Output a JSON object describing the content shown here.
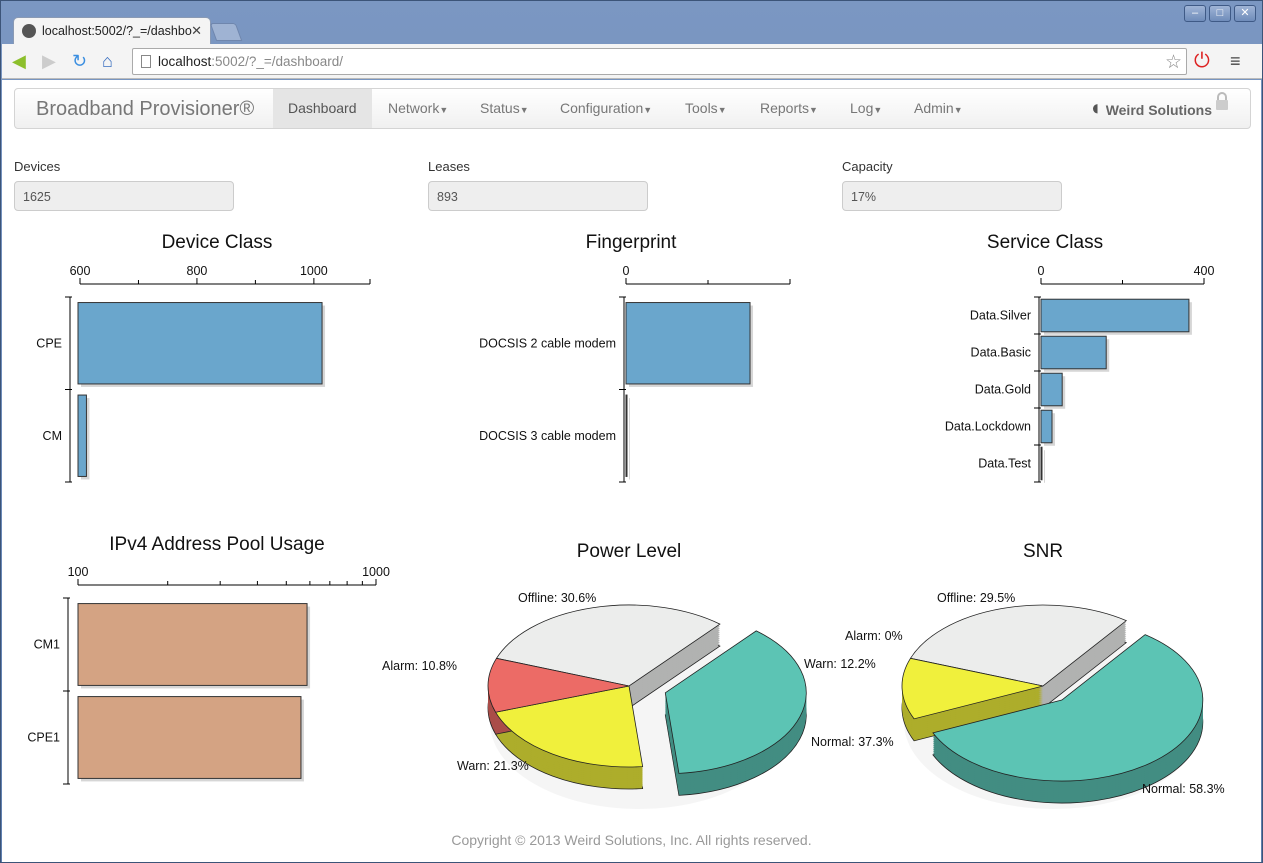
{
  "browser": {
    "tab_title": "localhost:5002/?_=/dashbo",
    "url_host": "localhost",
    "url_rest": ":5002/?_=/dashboard/"
  },
  "navbar": {
    "brand": "Broadband Provisioner®",
    "items": [
      "Dashboard",
      "Network",
      "Status",
      "Configuration",
      "Tools",
      "Reports",
      "Log",
      "Admin"
    ],
    "logo": "Weird Solutions"
  },
  "stats": [
    {
      "label": "Devices",
      "value": "1625"
    },
    {
      "label": "Leases",
      "value": "893"
    },
    {
      "label": "Capacity",
      "value": "17%"
    }
  ],
  "chart_data": [
    {
      "type": "bar",
      "orientation": "horizontal",
      "title": "Device Class",
      "categories": [
        "CPE",
        "CM"
      ],
      "values": [
        1014,
        611
      ],
      "xlim": [
        600,
        1096
      ],
      "ticks": [
        600,
        800,
        1000
      ],
      "minor_ticks": [
        700,
        900
      ],
      "color": "#6aa6cc"
    },
    {
      "type": "bar",
      "orientation": "horizontal",
      "title": "Fingerprint",
      "categories": [
        "DOCSIS 2 cable modem",
        "DOCSIS 3 cable modem"
      ],
      "values": [
        605,
        3
      ],
      "xlim": [
        0,
        800
      ],
      "ticks": [
        0
      ],
      "minor_ticks": [
        400
      ],
      "color": "#6aa6cc"
    },
    {
      "type": "bar",
      "orientation": "horizontal",
      "title": "Service Class",
      "categories": [
        "Data.Silver",
        "Data.Basic",
        "Data.Gold",
        "Data.Lockdown",
        "Data.Test"
      ],
      "values": [
        363,
        160,
        52,
        27,
        2
      ],
      "xlim": [
        0,
        400
      ],
      "ticks": [
        0,
        400
      ],
      "minor_ticks": [
        200
      ],
      "color": "#6aa6cc"
    },
    {
      "type": "bar",
      "orientation": "horizontal",
      "scale": "log",
      "title": "IPv4 Address Pool Usage",
      "categories": [
        "CM1",
        "CPE1"
      ],
      "values": [
        587,
        560
      ],
      "xlim": [
        100,
        1000
      ],
      "ticks": [
        100,
        1000
      ],
      "color": "#d4a383"
    },
    {
      "type": "pie",
      "title": "Power Level",
      "slices": [
        {
          "name": "Offline",
          "value": 30.6,
          "label": "Offline: 30.6%",
          "color": "#ecedec"
        },
        {
          "name": "Normal",
          "value": 37.3,
          "label": "Normal: 37.3%",
          "color": "#5cc4b4",
          "exploded": true
        },
        {
          "name": "Warn",
          "value": 21.3,
          "label": "Warn: 21.3%",
          "color": "#f0f03c"
        },
        {
          "name": "Alarm",
          "value": 10.8,
          "label": "Alarm: 10.8%",
          "color": "#ec6b66"
        }
      ]
    },
    {
      "type": "pie",
      "title": "SNR",
      "slices": [
        {
          "name": "Offline",
          "value": 29.5,
          "label": "Offline: 29.5%",
          "color": "#ecedec"
        },
        {
          "name": "Normal",
          "value": 58.3,
          "label": "Normal: 58.3%",
          "color": "#5cc4b4",
          "exploded": true
        },
        {
          "name": "Alarm",
          "value": 0,
          "label": "Alarm: 0%",
          "color": "#ec6b66"
        },
        {
          "name": "Warn",
          "value": 12.2,
          "label": "Warn: 12.2%",
          "color": "#f0f03c"
        }
      ]
    }
  ],
  "footer": "Copyright © 2013 Weird Solutions, Inc. All rights reserved."
}
